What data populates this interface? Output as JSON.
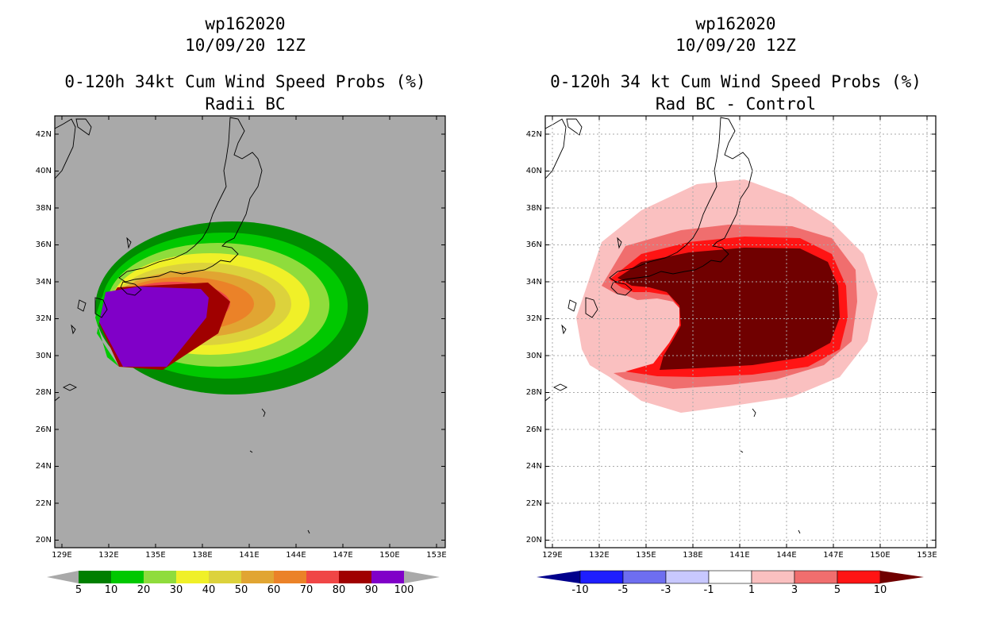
{
  "left": {
    "title_lines": [
      "wp162020",
      "10/09/20 12Z",
      "0-120h 34kt Cum Wind Speed Probs (%)",
      "Radii BC"
    ],
    "lat_labels": [
      "42N",
      "40N",
      "38N",
      "36N",
      "34N",
      "32N",
      "30N",
      "28N",
      "26N",
      "24N",
      "22N",
      "20N"
    ],
    "lon_labels": [
      "129E",
      "132E",
      "135E",
      "138E",
      "141E",
      "144E",
      "147E",
      "150E",
      "153E"
    ],
    "colorbar_labels": [
      "5",
      "10",
      "20",
      "30",
      "40",
      "50",
      "60",
      "70",
      "80",
      "90",
      "100"
    ],
    "colorbar_colors": [
      "#007f00",
      "#00c800",
      "#8fdc3c",
      "#f0f028",
      "#dcd23c",
      "#e1a532",
      "#eb8228",
      "#f04646",
      "#a00000",
      "#8000c8"
    ],
    "background": "#a9a9a9"
  },
  "right": {
    "title_lines": [
      "wp162020",
      "10/09/20 12Z",
      "0-120h 34 kt Cum Wind Speed Probs (%)",
      "Rad BC - Control"
    ],
    "lat_labels": [
      "42N",
      "40N",
      "38N",
      "36N",
      "34N",
      "32N",
      "30N",
      "28N",
      "26N",
      "24N",
      "22N",
      "20N"
    ],
    "lon_labels": [
      "129E",
      "132E",
      "135E",
      "138E",
      "141E",
      "144E",
      "147E",
      "150E",
      "153E"
    ],
    "colorbar_labels": [
      "-10",
      "-5",
      "-3",
      "-1",
      "1",
      "3",
      "5",
      "10"
    ],
    "colorbar_colors": [
      "#00008c",
      "#1e1eff",
      "#6e6ef0",
      "#c8c8ff",
      "#ffffff",
      "#fac0c0",
      "#f06e6e",
      "#ff1414",
      "#700000"
    ],
    "background": "#ffffff"
  }
}
